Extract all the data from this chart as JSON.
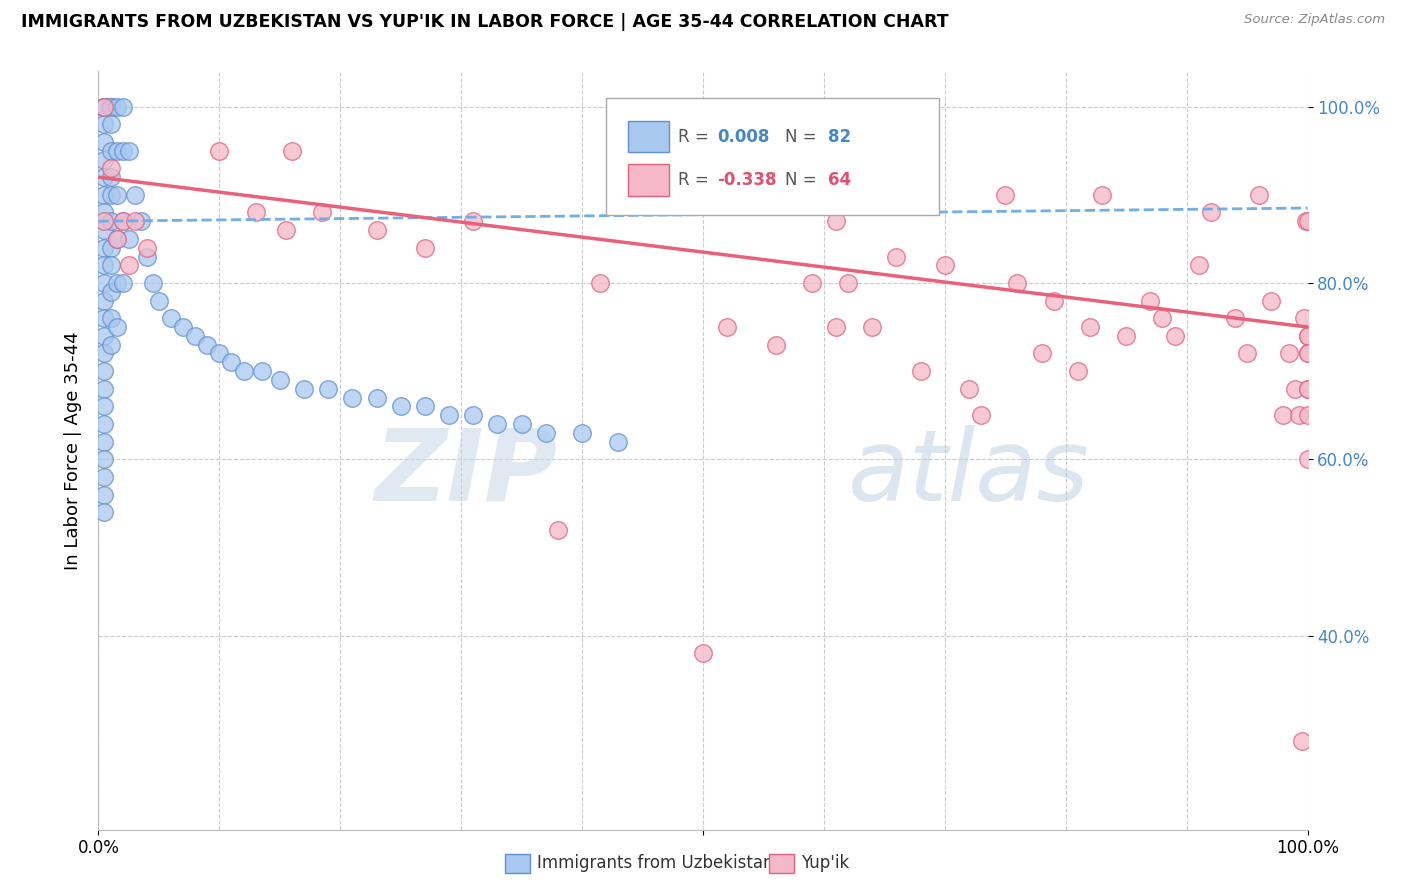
{
  "title": "IMMIGRANTS FROM UZBEKISTAN VS YUP'IK IN LABOR FORCE | AGE 35-44 CORRELATION CHART",
  "source": "Source: ZipAtlas.com",
  "ylabel": "In Labor Force | Age 35-44",
  "legend_blue_R": "0.008",
  "legend_blue_N": "82",
  "legend_pink_R": "-0.338",
  "legend_pink_N": "64",
  "watermark_zip": "ZIP",
  "watermark_atlas": "atlas",
  "blue_color": "#a8c8f0",
  "pink_color": "#f5b8c8",
  "blue_edge_color": "#6090d0",
  "pink_edge_color": "#e06080",
  "blue_trend_color": "#70aee8",
  "pink_trend_color": "#e8607a",
  "blue_r_color": "#4488cc",
  "pink_r_color": "#e05070",
  "right_tick_color": "#4488cc",
  "xlim": [
    0.0,
    1.0
  ],
  "ylim": [
    0.18,
    1.04
  ],
  "ytick_values": [
    0.4,
    0.6,
    0.8,
    1.0
  ],
  "ytick_labels": [
    "40.0%",
    "60.0%",
    "80.0%",
    "100.0%"
  ],
  "blue_scatter_x": [
    0.005,
    0.005,
    0.005,
    0.005,
    0.005,
    0.005,
    0.005,
    0.005,
    0.005,
    0.005,
    0.005,
    0.005,
    0.005,
    0.005,
    0.005,
    0.005,
    0.005,
    0.005,
    0.005,
    0.005,
    0.005,
    0.005,
    0.005,
    0.005,
    0.005,
    0.005,
    0.005,
    0.005,
    0.005,
    0.005,
    0.01,
    0.01,
    0.01,
    0.01,
    0.01,
    0.01,
    0.01,
    0.01,
    0.01,
    0.01,
    0.01,
    0.01,
    0.01,
    0.015,
    0.015,
    0.015,
    0.015,
    0.015,
    0.015,
    0.02,
    0.02,
    0.02,
    0.02,
    0.025,
    0.025,
    0.03,
    0.035,
    0.04,
    0.045,
    0.05,
    0.06,
    0.07,
    0.08,
    0.09,
    0.1,
    0.11,
    0.12,
    0.135,
    0.15,
    0.17,
    0.19,
    0.21,
    0.23,
    0.25,
    0.27,
    0.29,
    0.31,
    0.33,
    0.35,
    0.37,
    0.4,
    0.43
  ],
  "blue_scatter_y": [
    1.0,
    1.0,
    1.0,
    1.0,
    1.0,
    1.0,
    1.0,
    0.98,
    0.96,
    0.94,
    0.92,
    0.9,
    0.88,
    0.86,
    0.84,
    0.82,
    0.8,
    0.78,
    0.76,
    0.74,
    0.72,
    0.7,
    0.68,
    0.66,
    0.64,
    0.62,
    0.6,
    0.58,
    0.56,
    0.54,
    1.0,
    1.0,
    1.0,
    0.98,
    0.95,
    0.92,
    0.9,
    0.87,
    0.84,
    0.82,
    0.79,
    0.76,
    0.73,
    1.0,
    0.95,
    0.9,
    0.85,
    0.8,
    0.75,
    1.0,
    0.95,
    0.87,
    0.8,
    0.95,
    0.85,
    0.9,
    0.87,
    0.83,
    0.8,
    0.78,
    0.76,
    0.75,
    0.74,
    0.73,
    0.72,
    0.71,
    0.7,
    0.7,
    0.69,
    0.68,
    0.68,
    0.67,
    0.67,
    0.66,
    0.66,
    0.65,
    0.65,
    0.64,
    0.64,
    0.63,
    0.63,
    0.62
  ],
  "pink_scatter_x": [
    0.005,
    0.005,
    0.01,
    0.015,
    0.02,
    0.025,
    0.03,
    0.04,
    0.1,
    0.13,
    0.155,
    0.16,
    0.185,
    0.23,
    0.27,
    0.31,
    0.38,
    0.415,
    0.5,
    0.52,
    0.56,
    0.59,
    0.61,
    0.61,
    0.62,
    0.64,
    0.66,
    0.68,
    0.7,
    0.72,
    0.73,
    0.75,
    0.76,
    0.78,
    0.79,
    0.81,
    0.82,
    0.83,
    0.85,
    0.87,
    0.88,
    0.89,
    0.91,
    0.92,
    0.94,
    0.95,
    0.96,
    0.97,
    0.98,
    0.985,
    0.99,
    0.993,
    0.995,
    0.997,
    0.999,
    1.0,
    1.0,
    1.0,
    1.0,
    1.0,
    1.0,
    1.0,
    1.0,
    1.0
  ],
  "pink_scatter_y": [
    1.0,
    0.87,
    0.93,
    0.85,
    0.87,
    0.82,
    0.87,
    0.84,
    0.95,
    0.88,
    0.86,
    0.95,
    0.88,
    0.86,
    0.84,
    0.87,
    0.52,
    0.8,
    0.38,
    0.75,
    0.73,
    0.8,
    0.87,
    0.75,
    0.8,
    0.75,
    0.83,
    0.7,
    0.82,
    0.68,
    0.65,
    0.9,
    0.8,
    0.72,
    0.78,
    0.7,
    0.75,
    0.9,
    0.74,
    0.78,
    0.76,
    0.74,
    0.82,
    0.88,
    0.76,
    0.72,
    0.9,
    0.78,
    0.65,
    0.72,
    0.68,
    0.65,
    0.28,
    0.76,
    0.87,
    0.74,
    0.72,
    0.68,
    0.65,
    0.6,
    0.87,
    0.74,
    0.72,
    0.68
  ]
}
